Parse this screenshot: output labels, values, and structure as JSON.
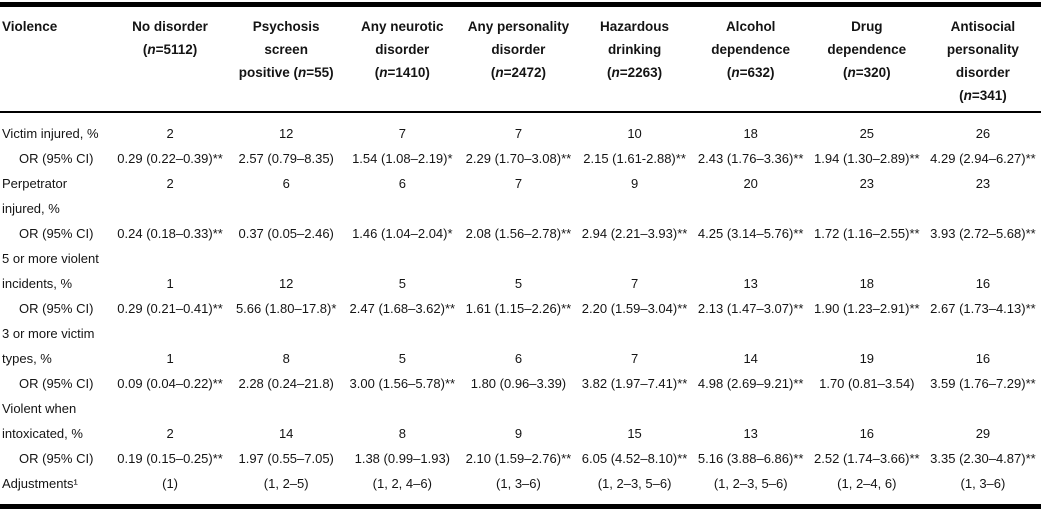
{
  "page": {
    "background": "#ffffff",
    "text_color": "#141414",
    "rule_color": "#000000"
  },
  "table": {
    "description": "Violence outcomes and odds ratios by psychiatric disorder group",
    "columns": [
      {
        "lines": [
          "Violence"
        ]
      },
      {
        "lines": [
          "No disorder",
          "(n=5112)"
        ]
      },
      {
        "lines": [
          "Psychosis screen",
          "positive (n=55)"
        ]
      },
      {
        "lines": [
          "Any neurotic",
          "disorder",
          "(n=1410)"
        ]
      },
      {
        "lines": [
          "Any personality",
          "disorder",
          "(n=2472)"
        ]
      },
      {
        "lines": [
          "Hazardous",
          "drinking",
          "(n=2263)"
        ]
      },
      {
        "lines": [
          "Alcohol",
          "dependence",
          "(n=632)"
        ]
      },
      {
        "lines": [
          "Drug",
          "dependence",
          "(n=320)"
        ]
      },
      {
        "lines": [
          "Antisocial",
          "personality",
          "disorder",
          "(n=341)"
        ]
      }
    ],
    "rows": [
      {
        "label": "Victim injured, %",
        "type": "pct",
        "cells": [
          "2",
          "12",
          "7",
          "7",
          "10",
          "18",
          "25",
          "26"
        ]
      },
      {
        "label": "OR (95% CI)",
        "type": "or",
        "cells": [
          "0.29 (0.22–0.39)**",
          "2.57 (0.79–8.35)",
          "1.54 (1.08–2.19)*",
          "2.29 (1.70–3.08)**",
          "2.15 (1.61-2.88)**",
          "2.43 (1.76–3.36)**",
          "1.94 (1.30–2.89)**",
          "4.29 (2.94–6.27)**"
        ]
      },
      {
        "label": "Perpetrator",
        "type": "pct",
        "cells": [
          "2",
          "6",
          "6",
          "7",
          "9",
          "20",
          "23",
          "23"
        ]
      },
      {
        "label": "injured, %",
        "type": "pct",
        "cells": null
      },
      {
        "label": "OR (95% CI)",
        "type": "or",
        "cells": [
          "0.24 (0.18–0.33)**",
          "0.37 (0.05–2.46)",
          "1.46 (1.04–2.04)*",
          "2.08 (1.56–2.78)**",
          "2.94 (2.21–3.93)**",
          "4.25 (3.14–5.76)**",
          "1.72 (1.16–2.55)**",
          "3.93 (2.72–5.68)**"
        ]
      },
      {
        "label": "5 or more violent",
        "type": "pct",
        "cells": null
      },
      {
        "label": "incidents, %",
        "type": "pct",
        "cells": [
          "1",
          "12",
          "5",
          "5",
          "7",
          "13",
          "18",
          "16"
        ]
      },
      {
        "label": "OR (95% CI)",
        "type": "or",
        "cells": [
          "0.29 (0.21–0.41)**",
          "5.66 (1.80–17.8)*",
          "2.47 (1.68–3.62)**",
          "1.61 (1.15–2.26)**",
          "2.20 (1.59–3.04)**",
          "2.13 (1.47–3.07)**",
          "1.90 (1.23–2.91)**",
          "2.67 (1.73–4.13)**"
        ]
      },
      {
        "label": "3 or more victim",
        "type": "pct",
        "cells": null
      },
      {
        "label": "types, %",
        "type": "pct",
        "cells": [
          "1",
          "8",
          "5",
          "6",
          "7",
          "14",
          "19",
          "16"
        ]
      },
      {
        "label": "OR (95% CI)",
        "type": "or",
        "cells": [
          "0.09 (0.04–0.22)**",
          "2.28 (0.24–21.8)",
          "3.00 (1.56–5.78)**",
          "1.80 (0.96–3.39)",
          "3.82 (1.97–7.41)**",
          "4.98 (2.69–9.21)**",
          "1.70 (0.81–3.54)",
          "3.59 (1.76–7.29)**"
        ]
      },
      {
        "label": "Violent when",
        "type": "pct",
        "cells": null
      },
      {
        "label": "intoxicated, %",
        "type": "pct",
        "cells": [
          "2",
          "14",
          "8",
          "9",
          "15",
          "13",
          "16",
          "29"
        ]
      },
      {
        "label": "OR (95% CI)",
        "type": "or",
        "cells": [
          "0.19 (0.15–0.25)**",
          "1.97 (0.55–7.05)",
          "1.38 (0.99–1.93)",
          "2.10 (1.59–2.76)**",
          "6.05 (4.52–8.10)**",
          "5.16 (3.88–6.86)**",
          "2.52 (1.74–3.66)**",
          "3.35 (2.30–4.87)**"
        ]
      },
      {
        "label": "Adjustments¹",
        "type": "adj",
        "cells": [
          "(1)",
          "(1, 2–5)",
          "(1, 2, 4–6)",
          "(1, 3–6)",
          "(1, 2–3, 5–6)",
          "(1, 2–3, 5–6)",
          "(1, 2–4, 6)",
          "(1, 3–6)"
        ]
      }
    ]
  }
}
